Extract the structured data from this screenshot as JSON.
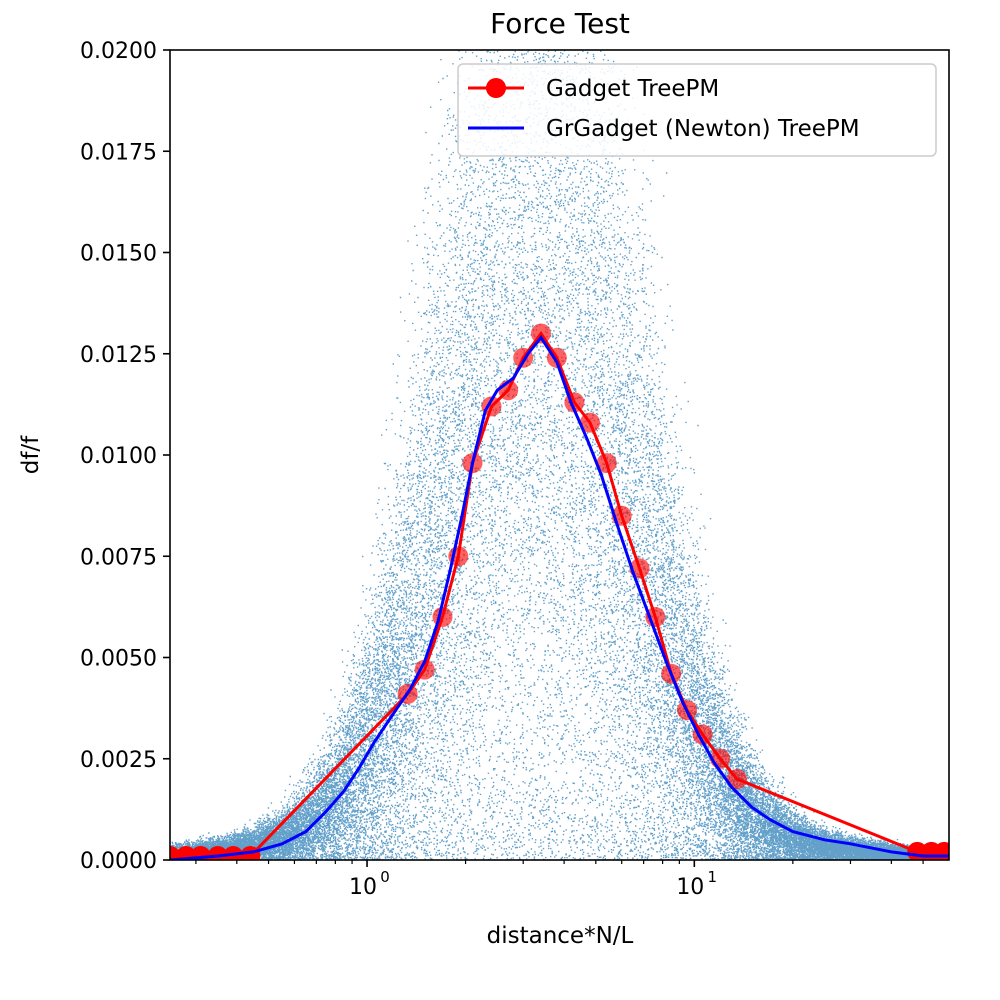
{
  "chart_data": {
    "type": "scatter",
    "title": "Force Test",
    "xlabel": "distance*N/L",
    "ylabel": "df/f",
    "xscale": "log",
    "xlim": [
      0.25,
      60
    ],
    "ylim": [
      0,
      0.02
    ],
    "grid": false,
    "legend_position": "top-right",
    "colors": {
      "scatter": "#1f77b4",
      "gadget": "#ff0000",
      "grgadget": "#0000ff"
    },
    "y_ticks": [
      {
        "value": 0,
        "label": "0.0000"
      },
      {
        "value": 0.0025,
        "label": "0.0025"
      },
      {
        "value": 0.005,
        "label": "0.0050"
      },
      {
        "value": 0.0075,
        "label": "0.0075"
      },
      {
        "value": 0.01,
        "label": "0.0100"
      },
      {
        "value": 0.0125,
        "label": "0.0125"
      },
      {
        "value": 0.015,
        "label": "0.0150"
      },
      {
        "value": 0.0175,
        "label": "0.0175"
      },
      {
        "value": 0.02,
        "label": "0.0200"
      }
    ],
    "x_major_ticks": [
      {
        "value": 1,
        "base": "10",
        "exp": "0"
      },
      {
        "value": 10,
        "base": "10",
        "exp": "1"
      }
    ],
    "x_minor_ticks": [
      0.3,
      0.4,
      0.5,
      0.6,
      0.7,
      0.8,
      0.9,
      2,
      3,
      4,
      5,
      6,
      7,
      8,
      9,
      20,
      30,
      40,
      50
    ],
    "series": [
      {
        "name": "Gadget TreePM",
        "style": "line+marker",
        "x": [
          0.25,
          0.28,
          0.31,
          0.35,
          0.39,
          0.44,
          1.33,
          1.5,
          1.7,
          1.9,
          2.1,
          2.4,
          2.7,
          3.0,
          3.4,
          3.8,
          4.3,
          4.8,
          5.4,
          6.0,
          6.8,
          7.6,
          8.5,
          9.5,
          10.6,
          12.0,
          13.5,
          48,
          53,
          58
        ],
        "y": [
          0.0001,
          0.0001,
          0.0001,
          0.0001,
          0.0001,
          0.0001,
          0.0041,
          0.0047,
          0.006,
          0.0075,
          0.0098,
          0.0112,
          0.0116,
          0.0124,
          0.013,
          0.0124,
          0.0113,
          0.0108,
          0.0098,
          0.0085,
          0.0072,
          0.006,
          0.0046,
          0.0037,
          0.0031,
          0.0025,
          0.002,
          0.0002,
          0.0002,
          0.0002
        ]
      },
      {
        "name": "GrGadget (Newton) TreePM",
        "style": "line",
        "x": [
          0.25,
          0.35,
          0.45,
          0.55,
          0.65,
          0.75,
          0.85,
          0.95,
          1.05,
          1.2,
          1.35,
          1.5,
          1.65,
          1.8,
          1.95,
          2.1,
          2.3,
          2.5,
          2.8,
          3.1,
          3.4,
          3.8,
          4.2,
          4.7,
          5.2,
          5.8,
          6.5,
          7.3,
          8.2,
          9.2,
          10.3,
          11.5,
          13,
          15,
          17,
          20,
          25,
          30,
          40,
          50,
          60
        ],
        "y": [
          0.0,
          0.0001,
          0.0002,
          0.0004,
          0.0007,
          0.0012,
          0.0017,
          0.0023,
          0.0029,
          0.0036,
          0.0042,
          0.0049,
          0.0059,
          0.0072,
          0.0085,
          0.0098,
          0.0111,
          0.0116,
          0.0119,
          0.0125,
          0.0129,
          0.0123,
          0.0113,
          0.0104,
          0.0095,
          0.0083,
          0.0071,
          0.006,
          0.0049,
          0.0039,
          0.0031,
          0.0024,
          0.0018,
          0.0013,
          0.001,
          0.0007,
          0.0005,
          0.0004,
          0.0002,
          0.0001,
          0.0001
        ]
      }
    ],
    "scatter_cloud": {
      "points": 42000,
      "x_range": [
        0.25,
        60
      ],
      "peak_x": 3.3
    }
  }
}
